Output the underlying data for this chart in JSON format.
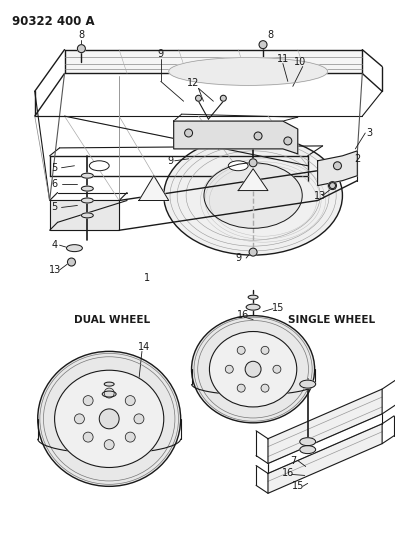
{
  "title": "90322 400 A",
  "bg_color": "#ffffff",
  "lc": "#1a1a1a",
  "fig_width": 3.98,
  "fig_height": 5.33,
  "dpi": 100
}
